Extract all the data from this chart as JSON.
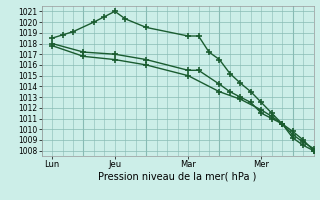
{
  "xlabel": "Pression niveau de la mer( hPa )",
  "bg_color": "#cceee8",
  "plot_bg_color": "#cceee8",
  "grid_color": "#88bbb4",
  "line_color": "#1a5c30",
  "ylim": [
    1007.5,
    1021.5
  ],
  "yticks": [
    1008,
    1009,
    1010,
    1011,
    1012,
    1013,
    1014,
    1015,
    1016,
    1017,
    1018,
    1019,
    1020,
    1021
  ],
  "xlim": [
    0,
    13
  ],
  "xtick_positions": [
    0.5,
    3.5,
    7,
    10.5
  ],
  "xtick_labels": [
    "Lun",
    "Jeu",
    "Mar",
    "Mer"
  ],
  "vline_positions": [
    2,
    5,
    8.5,
    12
  ],
  "line1_x": [
    0.5,
    1.0,
    1.5,
    2.5,
    3.0,
    3.5,
    4.0,
    5.0,
    7.0,
    7.5,
    8.0,
    8.5,
    9.0,
    9.5,
    10.0,
    10.5,
    11.0,
    11.5,
    12.0,
    12.5,
    13.0
  ],
  "line1_y": [
    1018.5,
    1018.8,
    1019.1,
    1020.0,
    1020.5,
    1021.0,
    1020.3,
    1019.5,
    1018.7,
    1018.7,
    1017.2,
    1016.5,
    1015.2,
    1014.3,
    1013.5,
    1012.5,
    1011.5,
    1010.5,
    1009.2,
    1008.5,
    1008.0
  ],
  "line2_x": [
    0.5,
    2.0,
    3.5,
    5.0,
    7.0,
    7.5,
    8.5,
    9.0,
    9.5,
    10.0,
    10.5,
    11.0,
    11.5,
    12.0,
    12.5,
    13.0
  ],
  "line2_y": [
    1018.0,
    1017.2,
    1017.0,
    1016.5,
    1015.5,
    1015.5,
    1014.2,
    1013.5,
    1013.0,
    1012.5,
    1011.5,
    1011.0,
    1010.5,
    1009.5,
    1008.8,
    1008.2
  ],
  "line3_x": [
    0.5,
    2.0,
    3.5,
    5.0,
    7.0,
    8.5,
    9.5,
    10.5,
    11.0,
    11.5,
    12.0,
    12.5,
    13.0
  ],
  "line3_y": [
    1017.8,
    1016.8,
    1016.5,
    1016.0,
    1015.0,
    1013.5,
    1012.8,
    1011.8,
    1011.2,
    1010.5,
    1009.8,
    1009.0,
    1008.0
  ],
  "marker": "+",
  "markersize": 4,
  "markeredgewidth": 1.2,
  "linewidth": 1.0,
  "xlabel_fontsize": 7,
  "tick_labelsize": 5.5,
  "figsize": [
    3.2,
    2.0
  ],
  "dpi": 100
}
